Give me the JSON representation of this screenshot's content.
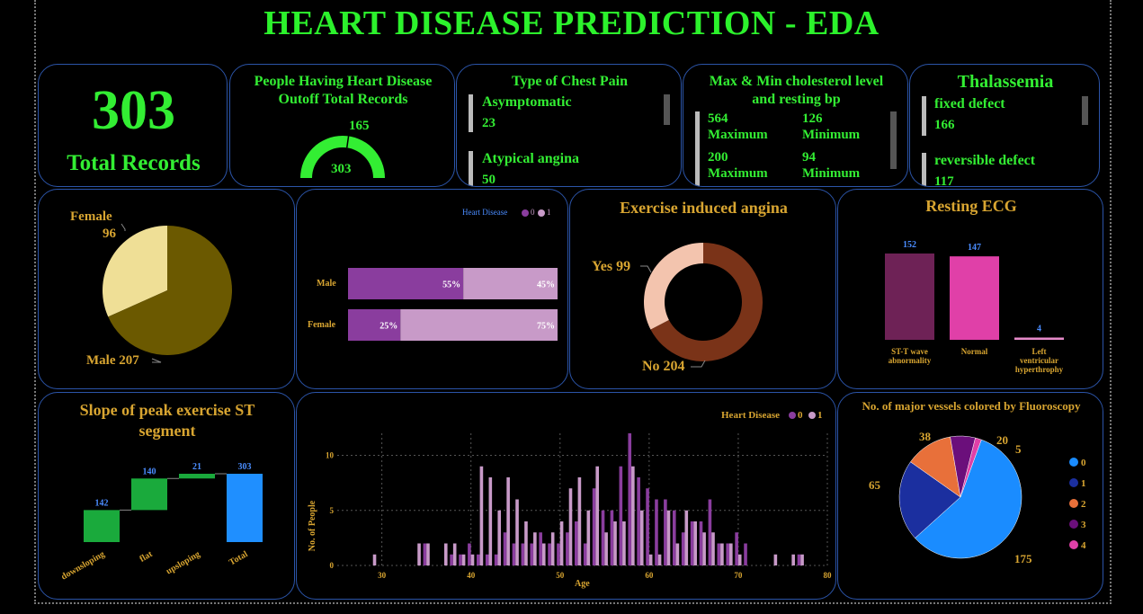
{
  "title": "HEART DISEASE PREDICTION - EDA",
  "total_card": {
    "value": "303",
    "label": "Total Records"
  },
  "gauge_card": {
    "title_line1": "People Having Heart Disease",
    "title_line2": "Outoff Total Records",
    "value": "165",
    "max": "303",
    "fraction": 0.5446
  },
  "chest_pain": {
    "title": "Type of Chest Pain",
    "items": [
      {
        "name": "Asymptomatic",
        "value": "23"
      },
      {
        "name": "Atypical angina",
        "value": "50"
      }
    ]
  },
  "chol_bp": {
    "title_line1": "Max & Min cholesterol level",
    "title_line2": "and resting bp",
    "rows": [
      {
        "v1": "564",
        "l1": "Maximum",
        "v2": "126",
        "l2": "Minimum"
      },
      {
        "v1": "200",
        "l1": "Maximum",
        "v2": "94",
        "l2": "Minimum"
      }
    ]
  },
  "thal": {
    "title": "Thalassemia",
    "items": [
      {
        "name": "fixed defect",
        "value": "166"
      },
      {
        "name": "reversible defect",
        "value": "117"
      }
    ]
  },
  "colors": {
    "green": "#33ee33",
    "gold": "#d8a531",
    "border": "#2b54a8",
    "purple0": "#8a3d9e",
    "purple1": "#c89ac8",
    "blue": "#1f8fff"
  },
  "chart_data": [
    {
      "type": "pie",
      "title": "",
      "slices": [
        {
          "label": "Female",
          "value": 96,
          "color": "#efdf96"
        },
        {
          "label": "Male",
          "value": 207,
          "color": "#6b5900"
        }
      ],
      "labels": {
        "female_name": "Female",
        "female_value": "96",
        "male": "Male 207"
      }
    },
    {
      "type": "bar",
      "orientation": "horizontal-stacked-100",
      "legend_title": "Heart Disease",
      "legend": [
        "0",
        "1"
      ],
      "categories": [
        "Male",
        "Female"
      ],
      "series": [
        {
          "name": "0",
          "values": [
            55,
            25
          ],
          "labels": [
            "55%",
            "25%"
          ]
        },
        {
          "name": "1",
          "values": [
            45,
            75
          ],
          "labels": [
            "45%",
            "75%"
          ]
        }
      ]
    },
    {
      "type": "pie",
      "subtype": "donut",
      "title": "Exercise induced angina",
      "slices": [
        {
          "label": "Yes",
          "value": 99,
          "color": "#f3c4ae"
        },
        {
          "label": "No",
          "value": 204,
          "color": "#7a3318"
        }
      ],
      "labels": {
        "yes": "Yes 99",
        "no": "No 204"
      }
    },
    {
      "type": "bar",
      "title": "Resting ECG",
      "categories": [
        "ST-T wave abnormality",
        "Normal",
        "Left ventricular hyperthrophy"
      ],
      "values": [
        152,
        147,
        4
      ],
      "value_labels": [
        "152",
        "147",
        "4"
      ],
      "colors": [
        "#6e2256",
        "#e040a8",
        "#e68ac9"
      ],
      "tick_lines": [
        [
          "ST-T wave",
          "abnormality"
        ],
        [
          "Normal"
        ],
        [
          "Left",
          "ventricular",
          "hyperthrophy"
        ]
      ]
    },
    {
      "type": "bar",
      "subtype": "waterfall",
      "title_line1": "Slope of peak exercise ST",
      "title_line2": "segment",
      "categories": [
        "downsloping",
        "flat",
        "upsloping",
        "Total"
      ],
      "values": [
        142,
        140,
        21,
        303
      ],
      "value_labels": [
        "142",
        "140",
        "21",
        "303"
      ]
    },
    {
      "type": "bar",
      "subtype": "clustered-histogram",
      "xlabel": "Age",
      "ylabel": "No. of People",
      "legend_title": "Heart Disease",
      "legend": [
        "0",
        "1"
      ],
      "xlim": [
        26,
        80
      ],
      "ylim": [
        0,
        12
      ],
      "xticks": [
        30,
        40,
        50,
        60,
        70,
        80
      ],
      "yticks": [
        0,
        5,
        10
      ],
      "ages": [
        29,
        34,
        35,
        37,
        38,
        39,
        40,
        41,
        42,
        43,
        44,
        45,
        46,
        47,
        48,
        49,
        50,
        51,
        52,
        53,
        54,
        55,
        56,
        57,
        58,
        59,
        60,
        61,
        62,
        63,
        64,
        65,
        66,
        67,
        68,
        69,
        70,
        71,
        74,
        76,
        77
      ],
      "series": [
        {
          "name": "0",
          "values": [
            0,
            0,
            2,
            0,
            1,
            1,
            2,
            1,
            1,
            1,
            3,
            2,
            2,
            2,
            3,
            2,
            2,
            3,
            4,
            2,
            7,
            5,
            5,
            9,
            12,
            8,
            7,
            6,
            6,
            5,
            3,
            4,
            4,
            6,
            2,
            2,
            3,
            2,
            0,
            0,
            1
          ]
        },
        {
          "name": "1",
          "values": [
            1,
            2,
            2,
            2,
            2,
            1,
            1,
            9,
            8,
            5,
            8,
            6,
            4,
            3,
            2,
            3,
            4,
            7,
            8,
            5,
            9,
            3,
            4,
            4,
            9,
            5,
            1,
            1,
            5,
            2,
            5,
            4,
            3,
            3,
            2,
            2,
            1,
            0,
            1,
            1,
            1
          ]
        }
      ]
    },
    {
      "type": "pie",
      "title": "No. of major vessels colored by Fluoroscopy",
      "slices": [
        {
          "label": "0",
          "value": 175,
          "color": "#1a8cff"
        },
        {
          "label": "1",
          "value": 65,
          "color": "#1b2f9f"
        },
        {
          "label": "2",
          "value": 38,
          "color": "#e8703a"
        },
        {
          "label": "3",
          "value": 20,
          "color": "#6b0f7b"
        },
        {
          "label": "4",
          "value": 5,
          "color": "#e040a8"
        }
      ],
      "value_labels": [
        "175",
        "65",
        "38",
        "20",
        "5"
      ]
    }
  ]
}
